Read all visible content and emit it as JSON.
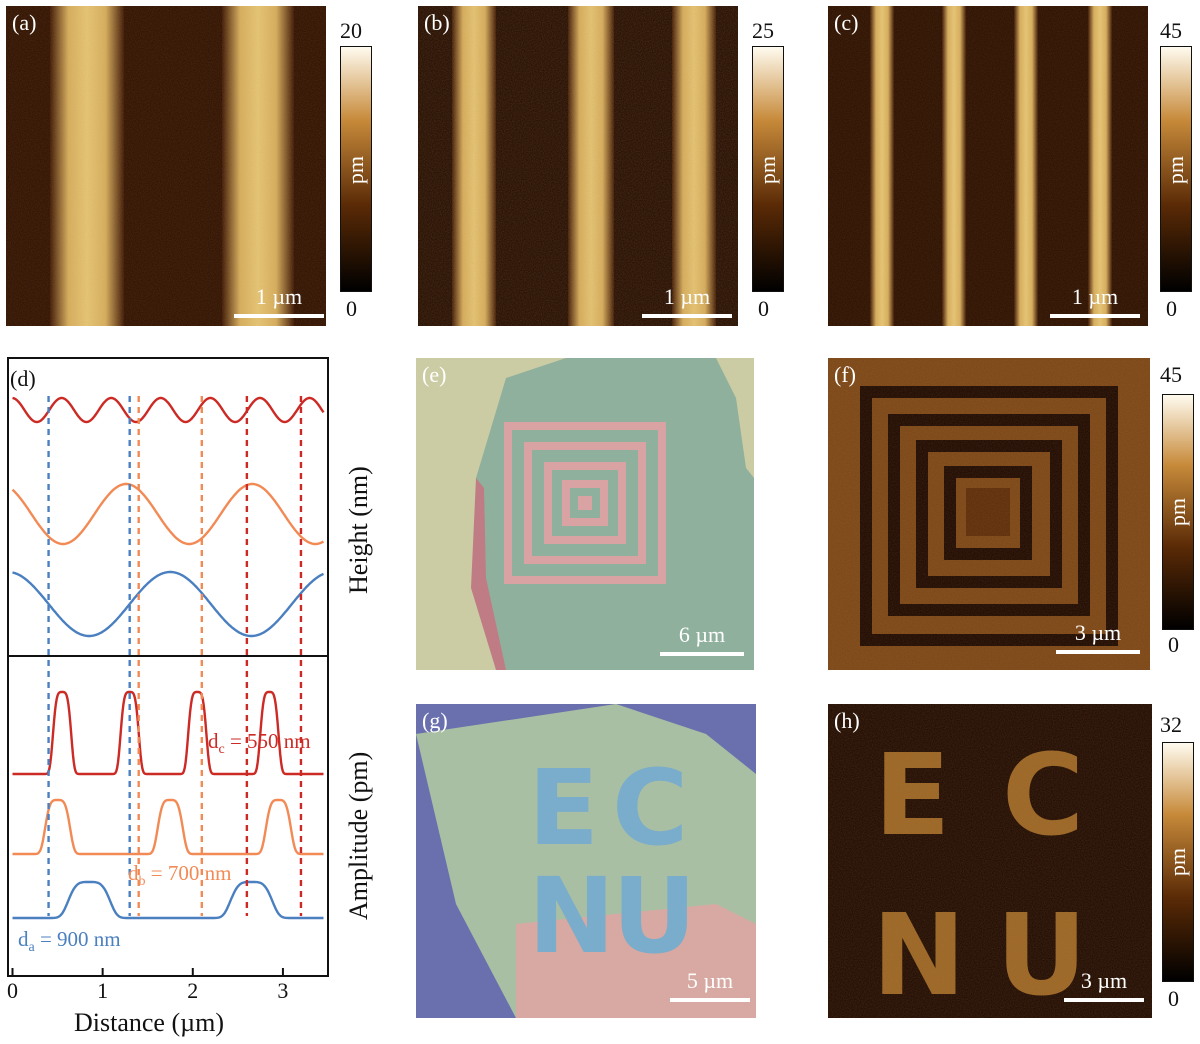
{
  "panels": {
    "a": {
      "label": "(a)",
      "scale": "1 µm",
      "cbar_max": "20",
      "cbar_min": "0",
      "cbar_unit": "pm"
    },
    "b": {
      "label": "(b)",
      "scale": "1 µm",
      "cbar_max": "25",
      "cbar_min": "0",
      "cbar_unit": "pm"
    },
    "c": {
      "label": "(c)",
      "scale": "1 µm",
      "cbar_max": "45",
      "cbar_min": "0",
      "cbar_unit": "pm"
    },
    "d": {
      "label": "(d)"
    },
    "e": {
      "label": "(e)",
      "scale": "6 µm"
    },
    "f": {
      "label": "(f)",
      "scale": "3 µm",
      "cbar_max": "45",
      "cbar_min": "0",
      "cbar_unit": "pm"
    },
    "g": {
      "label": "(g)",
      "scale": "5 µm",
      "letters": [
        "E",
        "C",
        "N",
        "U"
      ]
    },
    "h": {
      "label": "(h)",
      "scale": "3 µm",
      "cbar_max": "32",
      "cbar_min": "0",
      "cbar_unit": "pm",
      "letters": [
        "E",
        "C",
        "N",
        "U"
      ]
    }
  },
  "colors": {
    "red": "#cc2a24",
    "orange": "#f28a55",
    "blue": "#4a7fc0",
    "afm_dark": "#2a0c00",
    "afm_bright": "#f6e6b0"
  },
  "chart_data": {
    "type": "line",
    "xlabel": "Distance (µm)",
    "ylabel_top": "Height (nm)",
    "ylabel_bottom": "Amplitude (pm)",
    "xlim": [
      -0.05,
      3.5
    ],
    "xticks": [
      "0",
      "1",
      "2",
      "3"
    ],
    "annotations": [
      {
        "main": "d",
        "sub": "c",
        "rest": " = 550 nm"
      },
      {
        "main": "d",
        "sub": "b",
        "rest": " = 700 nm"
      },
      {
        "main": "d",
        "sub": "a",
        "rest": " = 900 nm"
      }
    ],
    "height_series": [
      {
        "color": "red",
        "period": 0.55,
        "x_min_first": 0.27,
        "depth": 0.35
      },
      {
        "color": "orange",
        "period": 1.4,
        "x_min_first": 0.56,
        "depth": 0.9
      },
      {
        "color": "blue",
        "period": 1.8,
        "x_min_first": 0.85,
        "depth": 1.0
      }
    ],
    "amplitude_series": [
      {
        "color": "red",
        "peak_centers": [
          0.55,
          1.3,
          2.05,
          2.85
        ]
      },
      {
        "color": "orange",
        "peak_centers": [
          0.5,
          1.75,
          2.95
        ]
      },
      {
        "color": "blue",
        "peak_centers": [
          0.85,
          2.65
        ]
      }
    ],
    "dashed_lines": [
      {
        "x": 0.4,
        "color": "blue"
      },
      {
        "x": 1.3,
        "color": "blue"
      },
      {
        "x": 1.4,
        "color": "orange"
      },
      {
        "x": 2.1,
        "color": "orange"
      },
      {
        "x": 2.6,
        "color": "red"
      },
      {
        "x": 3.2,
        "color": "red"
      }
    ]
  }
}
